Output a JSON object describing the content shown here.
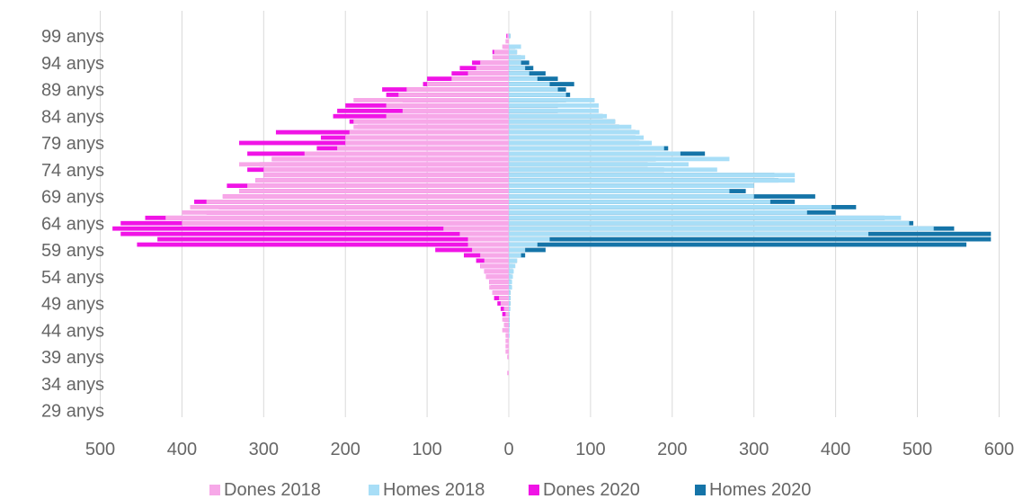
{
  "chart_data": {
    "type": "bar",
    "orientation": "horizontal",
    "title": "",
    "xlabel": "",
    "ylabel": "",
    "x_axis_ticks": [
      "500",
      "400",
      "300",
      "200",
      "100",
      "0",
      "100",
      "200",
      "300",
      "400",
      "500",
      "600"
    ],
    "x_range": [
      -500,
      600
    ],
    "grid": "vertical",
    "legend_position": "bottom",
    "age_labels": [
      "99 anys",
      "94 anys",
      "89 anys",
      "84 anys",
      "79 anys",
      "74 anys",
      "69 anys",
      "64 anys",
      "59 anys",
      "54 anys",
      "49 anys",
      "44 anys",
      "39 anys",
      "34 anys",
      "29 anys"
    ],
    "categories": [
      99,
      98,
      97,
      96,
      95,
      94,
      93,
      92,
      91,
      90,
      89,
      88,
      87,
      86,
      85,
      84,
      83,
      82,
      81,
      80,
      79,
      78,
      77,
      76,
      75,
      74,
      73,
      72,
      71,
      70,
      69,
      68,
      67,
      66,
      65,
      64,
      63,
      62,
      61,
      60,
      59,
      58,
      57,
      56,
      55,
      54,
      53,
      52,
      51,
      50,
      49,
      48,
      47,
      46,
      45,
      44,
      43,
      42,
      41,
      40,
      39,
      38,
      37,
      36,
      35,
      34,
      33,
      32,
      31,
      30,
      29
    ],
    "series": [
      {
        "name": "Dones 2018",
        "color": "#f7a8e8",
        "values": [
          2,
          4,
          8,
          18,
          20,
          35,
          40,
          50,
          70,
          100,
          125,
          135,
          190,
          150,
          130,
          150,
          190,
          190,
          195,
          200,
          200,
          210,
          250,
          290,
          330,
          300,
          300,
          310,
          320,
          330,
          350,
          370,
          390,
          400,
          420,
          400,
          80,
          60,
          50,
          50,
          45,
          35,
          30,
          35,
          30,
          28,
          24,
          24,
          20,
          12,
          10,
          6,
          4,
          8,
          6,
          8,
          4,
          4,
          4,
          4,
          2,
          0,
          0,
          2,
          0,
          0,
          0,
          0,
          0,
          0,
          0
        ]
      },
      {
        "name": "Homes 2018",
        "color": "#a8def7",
        "values": [
          2,
          0,
          15,
          10,
          20,
          15,
          20,
          25,
          35,
          50,
          60,
          70,
          105,
          110,
          110,
          120,
          130,
          150,
          160,
          165,
          175,
          190,
          210,
          270,
          220,
          255,
          350,
          350,
          300,
          270,
          300,
          320,
          395,
          365,
          480,
          490,
          520,
          440,
          50,
          35,
          20,
          15,
          10,
          8,
          6,
          5,
          4,
          4,
          2,
          2,
          2,
          2,
          1,
          1,
          1,
          1,
          1,
          0,
          0,
          0,
          0,
          0,
          0,
          0,
          0,
          0,
          0,
          0,
          0,
          0,
          0
        ]
      },
      {
        "name": "Dones 2020",
        "color": "#f014e6",
        "values": [
          3,
          0,
          6,
          20,
          0,
          45,
          60,
          70,
          100,
          105,
          155,
          150,
          130,
          200,
          210,
          215,
          195,
          185,
          285,
          230,
          330,
          235,
          320,
          290,
          305,
          320,
          300,
          310,
          345,
          330,
          350,
          385,
          355,
          370,
          445,
          475,
          485,
          475,
          430,
          455,
          90,
          55,
          40,
          35,
          30,
          28,
          24,
          22,
          20,
          18,
          14,
          10,
          8,
          6,
          5,
          4,
          3,
          2,
          2,
          2,
          1,
          0,
          0,
          0,
          0,
          0,
          0,
          0,
          0,
          0,
          0
        ]
      },
      {
        "name": "Homes 2020",
        "color": "#1574a8",
        "values": [
          2,
          0,
          8,
          10,
          15,
          25,
          30,
          45,
          60,
          80,
          70,
          75,
          70,
          60,
          60,
          115,
          130,
          135,
          155,
          155,
          160,
          195,
          240,
          180,
          170,
          190,
          325,
          330,
          300,
          290,
          375,
          350,
          425,
          400,
          460,
          495,
          545,
          590,
          590,
          560,
          45,
          20,
          10,
          5,
          5,
          3,
          3,
          3,
          2,
          2,
          2,
          1,
          1,
          1,
          1,
          0,
          0,
          0,
          0,
          0,
          0,
          0,
          0,
          0,
          0,
          0,
          0,
          0,
          0,
          0,
          0
        ]
      }
    ]
  },
  "legend": {
    "items": [
      {
        "label": "Dones 2018",
        "color": "#f7a8e8"
      },
      {
        "label": "Homes 2018",
        "color": "#a8def7"
      },
      {
        "label": "Dones 2020",
        "color": "#f014e6"
      },
      {
        "label": "Homes 2020",
        "color": "#1574a8"
      }
    ]
  }
}
